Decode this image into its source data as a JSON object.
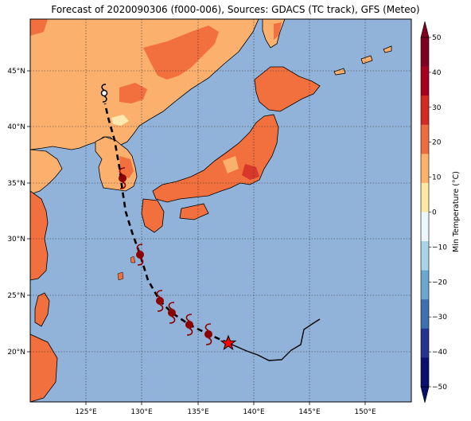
{
  "title": "Forecast of 2020090306 (f000-006), Sources: GDACS (TC track), GFS (Meteo)",
  "lon_ticks": [
    "125°E",
    "130°E",
    "135°E",
    "140°E",
    "145°E",
    "150°E"
  ],
  "lat_ticks": [
    "45°N",
    "40°N",
    "35°N",
    "30°N",
    "25°N",
    "20°N"
  ],
  "colorbar": {
    "label": "Min Temperature (°C)",
    "ticks": [
      "50",
      "40",
      "30",
      "20",
      "10",
      "0",
      "−10",
      "−20",
      "−30",
      "−40",
      "−50"
    ],
    "colors": [
      "#7f0020",
      "#a7001f",
      "#d52a22",
      "#ee6d3f",
      "#fbb26a",
      "#fde9a6",
      "#ecf7fb",
      "#a9d4e8",
      "#6aa6cd",
      "#3e6fb0",
      "#25358f",
      "#0b0f6e"
    ]
  },
  "colors": {
    "ocean": "#92b3d9",
    "land_warm": "#fcb06e",
    "land_hot": "#f26f3e",
    "land_hotter": "#d9372a",
    "land_mild": "#fde9b0",
    "storm": "#8b0000",
    "track": "#000000"
  },
  "storm": {
    "current_marker": "star",
    "forecast_symbol": "tropical-cyclone"
  }
}
